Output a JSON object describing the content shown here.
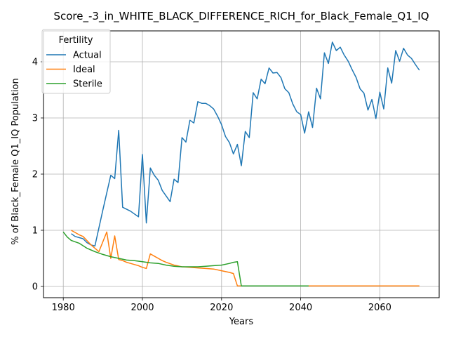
{
  "chart_data": {
    "type": "line",
    "title": "Score_-3_in_WHITE_BLACK_DIFFERENCE_RICH_for_Black_Female_Q1_IQ",
    "xlabel": "Years",
    "ylabel": "% of Black_Female Q1_IQ Population",
    "xlim": [
      1975,
      2075
    ],
    "ylim": [
      -0.2,
      4.55
    ],
    "xticks": [
      1980,
      2000,
      2020,
      2040,
      2060
    ],
    "yticks": [
      0,
      1,
      2,
      3,
      4
    ],
    "grid": true,
    "legend": {
      "title": "Fertility",
      "position": "top-left"
    },
    "series": [
      {
        "name": "Actual",
        "color": "#1f77b4",
        "x": [
          1982,
          1983,
          1985,
          1986,
          1987,
          1988,
          1990,
          1992,
          1993,
          1994,
          1995,
          1997,
          1998,
          1999,
          2000,
          2001,
          2002,
          2003,
          2004,
          2005,
          2007,
          2008,
          2009,
          2010,
          2011,
          2012,
          2013,
          2014,
          2015,
          2016,
          2017,
          2018,
          2019,
          2020,
          2021,
          2022,
          2023,
          2024,
          2025,
          2026,
          2027,
          2028,
          2029,
          2030,
          2031,
          2032,
          2033,
          2034,
          2035,
          2036,
          2037,
          2038,
          2039,
          2040,
          2041,
          2042,
          2043,
          2044,
          2045,
          2046,
          2047,
          2048,
          2049,
          2050,
          2051,
          2052,
          2053,
          2054,
          2055,
          2056,
          2057,
          2058,
          2059,
          2060,
          2061,
          2062,
          2063,
          2064,
          2065,
          2066,
          2067,
          2068,
          2069,
          2070
        ],
        "y": [
          0.94,
          0.89,
          0.85,
          0.78,
          0.74,
          0.72,
          1.36,
          1.98,
          1.92,
          2.78,
          1.41,
          1.34,
          1.29,
          1.24,
          2.35,
          1.13,
          2.11,
          1.98,
          1.89,
          1.71,
          1.51,
          1.91,
          1.85,
          2.65,
          2.57,
          2.96,
          2.91,
          3.29,
          3.26,
          3.26,
          3.22,
          3.16,
          3.03,
          2.88,
          2.67,
          2.56,
          2.36,
          2.53,
          2.15,
          2.76,
          2.65,
          3.45,
          3.34,
          3.69,
          3.61,
          3.89,
          3.8,
          3.81,
          3.72,
          3.52,
          3.45,
          3.25,
          3.11,
          3.06,
          2.73,
          3.11,
          2.83,
          3.53,
          3.34,
          4.16,
          3.97,
          4.35,
          4.2,
          4.26,
          4.12,
          4.01,
          3.86,
          3.72,
          3.52,
          3.44,
          3.14,
          3.33,
          2.99,
          3.46,
          3.16,
          3.89,
          3.62,
          4.2,
          4.01,
          4.24,
          4.12,
          4.06,
          3.95,
          3.85
        ]
      },
      {
        "name": "Ideal",
        "color": "#ff7f0e",
        "x": [
          1982,
          1984,
          1985,
          1987,
          1989,
          1991,
          1992,
          1993,
          1994,
          1995,
          1996,
          1997,
          1998,
          1999,
          2000,
          2001,
          2002,
          2003,
          2004,
          2005,
          2006,
          2008,
          2010,
          2012,
          2014,
          2016,
          2018,
          2020,
          2022,
          2023,
          2024,
          2025,
          2030,
          2040,
          2050,
          2060,
          2070
        ],
        "y": [
          1.0,
          0.92,
          0.89,
          0.74,
          0.62,
          0.97,
          0.5,
          0.9,
          0.48,
          0.46,
          0.43,
          0.41,
          0.39,
          0.37,
          0.34,
          0.32,
          0.58,
          0.54,
          0.5,
          0.46,
          0.43,
          0.38,
          0.35,
          0.34,
          0.33,
          0.32,
          0.31,
          0.28,
          0.25,
          0.23,
          0.01,
          0.01,
          0.01,
          0.01,
          0.01,
          0.01,
          0.01
        ]
      },
      {
        "name": "Sterile",
        "color": "#2ca02c",
        "x": [
          1980,
          1981,
          1982,
          1984,
          1986,
          1988,
          1990,
          1992,
          1994,
          1996,
          1998,
          2000,
          2002,
          2004,
          2006,
          2008,
          2010,
          2012,
          2014,
          2016,
          2018,
          2020,
          2022,
          2023,
          2024,
          2025,
          2030,
          2035,
          2040,
          2042
        ],
        "y": [
          0.97,
          0.88,
          0.82,
          0.77,
          0.68,
          0.62,
          0.57,
          0.53,
          0.5,
          0.47,
          0.46,
          0.44,
          0.42,
          0.41,
          0.38,
          0.36,
          0.35,
          0.35,
          0.35,
          0.36,
          0.37,
          0.38,
          0.41,
          0.43,
          0.44,
          0.01,
          0.01,
          0.01,
          0.01,
          0.01
        ]
      }
    ]
  }
}
